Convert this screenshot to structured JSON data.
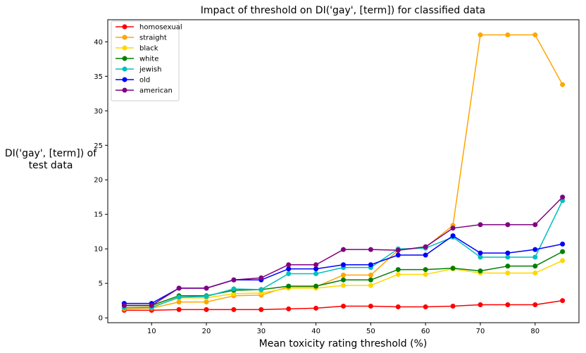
{
  "chart_data": {
    "type": "line",
    "title": "Impact of threshold on DI('gay', [term]) for classified data",
    "xlabel": "Mean toxicity rating threshold (%)",
    "ylabel_lines": [
      "DI('gay', [term]) of",
      "test data"
    ],
    "xlim": [
      2.0,
      88.0
    ],
    "ylim": [
      -0.7,
      43.2
    ],
    "xticks": [
      10,
      20,
      30,
      40,
      50,
      60,
      70,
      80
    ],
    "yticks": [
      0,
      5,
      10,
      15,
      20,
      25,
      30,
      35,
      40
    ],
    "grid": false,
    "legend_position": "upper-left",
    "x": [
      5,
      10,
      15,
      20,
      25,
      30,
      35,
      40,
      45,
      50,
      55,
      60,
      65,
      70,
      75,
      80,
      85
    ],
    "series": [
      {
        "name": "homosexual",
        "color": "#ff0000",
        "values": [
          1.1,
          1.1,
          1.2,
          1.2,
          1.2,
          1.2,
          1.3,
          1.4,
          1.7,
          1.7,
          1.6,
          1.6,
          1.7,
          1.9,
          1.9,
          1.9,
          2.5
        ]
      },
      {
        "name": "straight",
        "color": "#ffa500",
        "values": [
          1.3,
          1.4,
          2.3,
          2.3,
          3.2,
          3.3,
          4.5,
          4.5,
          6.2,
          6.2,
          9.8,
          10.2,
          13.4,
          41.0,
          41.0,
          41.0,
          33.8
        ]
      },
      {
        "name": "black",
        "color": "#ffd700",
        "values": [
          1.5,
          1.6,
          2.9,
          2.9,
          3.5,
          3.6,
          4.3,
          4.3,
          4.7,
          4.7,
          6.3,
          6.3,
          7.1,
          6.5,
          6.5,
          6.5,
          8.3
        ]
      },
      {
        "name": "white",
        "color": "#008000",
        "values": [
          1.8,
          1.8,
          3.2,
          3.2,
          4.0,
          4.1,
          4.6,
          4.6,
          5.5,
          5.5,
          7.0,
          7.0,
          7.2,
          6.8,
          7.5,
          7.5,
          9.6
        ]
      },
      {
        "name": "jewish",
        "color": "#00bfbf",
        "values": [
          1.5,
          1.5,
          3.0,
          3.1,
          4.2,
          4.1,
          6.4,
          6.4,
          7.3,
          7.3,
          10.0,
          10.1,
          11.7,
          8.8,
          8.8,
          8.8,
          17.0
        ]
      },
      {
        "name": "old",
        "color": "#0000ff",
        "values": [
          2.1,
          2.1,
          4.3,
          4.3,
          5.5,
          5.5,
          7.1,
          7.1,
          7.7,
          7.7,
          9.1,
          9.1,
          11.9,
          9.4,
          9.4,
          9.9,
          10.7
        ]
      },
      {
        "name": "american",
        "color": "#800080",
        "values": [
          1.8,
          1.8,
          4.3,
          4.3,
          5.5,
          5.8,
          7.7,
          7.7,
          9.9,
          9.9,
          9.8,
          10.3,
          13.0,
          13.5,
          13.5,
          13.5,
          17.5
        ]
      }
    ]
  }
}
